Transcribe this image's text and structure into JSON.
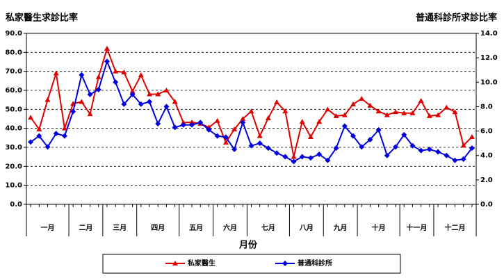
{
  "chart_data": {
    "type": "line",
    "ylabel": "私家醫生求診比率",
    "y2label": "普通科診所求診比率",
    "xlabel": "月份",
    "categories": [
      null,
      null,
      null,
      null,
      null,
      null,
      null,
      null,
      null,
      null,
      null,
      null,
      null,
      null,
      null,
      null,
      null,
      null,
      null,
      null,
      null,
      null,
      null,
      null,
      null,
      null,
      null,
      null,
      null,
      null,
      null,
      null,
      null,
      null,
      null,
      null,
      null,
      null,
      null,
      null,
      null,
      null,
      null,
      null,
      null,
      null,
      null,
      null,
      null,
      null,
      null,
      null,
      null
    ],
    "groups": [
      {
        "label": "一月",
        "size": 5
      },
      {
        "label": "二月",
        "size": 4
      },
      {
        "label": "三月",
        "size": 4
      },
      {
        "label": "四月",
        "size": 5
      },
      {
        "label": "五月",
        "size": 4
      },
      {
        "label": "六月",
        "size": 4
      },
      {
        "label": "七月",
        "size": 5
      },
      {
        "label": "八月",
        "size": 4
      },
      {
        "label": "九月",
        "size": 4
      },
      {
        "label": "十月",
        "size": 5
      },
      {
        "label": "十一月",
        "size": 4
      },
      {
        "label": "十二月",
        "size": 5
      }
    ],
    "series": [
      {
        "name": "私家醫生",
        "color": "#e00000",
        "marker": "triangle",
        "axis": "y",
        "values": [
          45.7,
          39.5,
          55,
          69,
          40,
          53,
          54,
          47.5,
          67,
          82,
          70,
          69.5,
          59.5,
          68,
          58,
          58,
          60,
          54,
          43,
          43.2,
          42.5,
          40.5,
          44,
          32.5,
          39.5,
          45,
          49,
          36,
          45.4,
          53.8,
          49,
          25,
          43.5,
          35.5,
          43.5,
          50,
          46.5,
          47,
          52.7,
          55.6,
          52,
          49,
          47,
          48.6,
          48,
          48,
          54.5,
          46.5,
          47,
          51,
          48.6,
          31,
          35.5
        ]
      },
      {
        "name": "普通科診所",
        "color": "#0000e0",
        "marker": "diamond",
        "axis": "y2",
        "values": [
          5.1,
          5.6,
          4.7,
          5.8,
          5.6,
          7.6,
          10.6,
          9.0,
          9.4,
          11.7,
          10.0,
          8.2,
          9.0,
          8.2,
          8.4,
          6.6,
          8.0,
          6.3,
          6.5,
          6.5,
          6.7,
          6.1,
          5.6,
          5.5,
          4.5,
          6.7,
          4.8,
          5.0,
          4.6,
          4.2,
          3.9,
          3.5,
          3.9,
          3.8,
          4.1,
          3.6,
          4.6,
          6.4,
          5.6,
          4.7,
          5.3,
          6.1,
          4.0,
          4.7,
          5.7,
          4.8,
          4.4,
          4.5,
          4.3,
          4.0,
          3.6,
          3.7,
          4.6
        ]
      }
    ],
    "ylim": [
      0,
      90
    ],
    "yticks": [
      {
        "value": 0,
        "label": "0.0"
      },
      {
        "value": 10,
        "label": "10.0"
      },
      {
        "value": 20,
        "label": "20.0"
      },
      {
        "value": 30,
        "label": "30.0"
      },
      {
        "value": 40,
        "label": "40.0"
      },
      {
        "value": 50,
        "label": "50.0"
      },
      {
        "value": 60,
        "label": "60.0"
      },
      {
        "value": 70,
        "label": "70.0"
      },
      {
        "value": 80,
        "label": "80.0"
      },
      {
        "value": 90,
        "label": "90.0"
      }
    ],
    "y2lim": [
      0,
      14
    ],
    "y2ticks": [
      {
        "value": 0,
        "label": "0.0"
      },
      {
        "value": 2,
        "label": "2.0"
      },
      {
        "value": 4,
        "label": "4.0"
      },
      {
        "value": 6,
        "label": "6.0"
      },
      {
        "value": 8,
        "label": "8.0"
      },
      {
        "value": 10,
        "label": "10.0"
      },
      {
        "value": 12,
        "label": "12.0"
      },
      {
        "value": 14,
        "label": "14.0"
      }
    ],
    "grid": true,
    "legend": "bottom"
  }
}
